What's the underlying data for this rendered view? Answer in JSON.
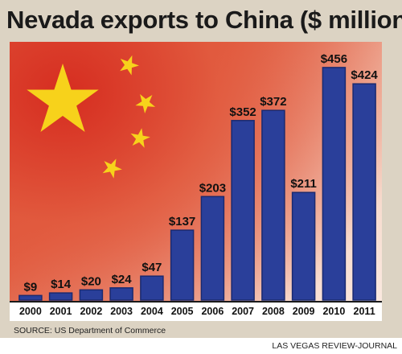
{
  "title": "Nevada exports to China ($ million)",
  "source": "SOURCE: US Department of Commerce",
  "credit": "LAS VEGAS REVIEW-JOURNAL",
  "colors": {
    "bar": "#2a3f9a",
    "bar_dark": "#1a2a70",
    "star": "#f7d21b",
    "flag_red": "#d8321f"
  },
  "chart_data": {
    "type": "bar",
    "title": "Nevada exports to China ($ million)",
    "xlabel": "",
    "ylabel": "",
    "categories": [
      "2000",
      "2001",
      "2002",
      "2003",
      "2004",
      "2005",
      "2006",
      "2007",
      "2008",
      "2009",
      "2010",
      "2011"
    ],
    "values": [
      9,
      14,
      20,
      24,
      47,
      137,
      203,
      352,
      372,
      211,
      456,
      424
    ],
    "data_labels": [
      "$9",
      "$14",
      "$20",
      "$24",
      "$47",
      "$137",
      "$203",
      "$352",
      "$372",
      "$211",
      "$456",
      "$424"
    ],
    "ylim": [
      0,
      500
    ],
    "grid": false,
    "legend": "none"
  }
}
